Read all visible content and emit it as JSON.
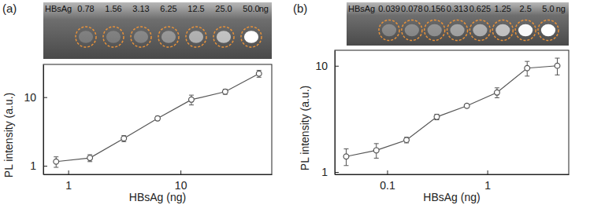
{
  "chart_data": [
    {
      "type": "line",
      "title": "(a)",
      "x_label": "HBsAg (ng)",
      "y_label": "PL intensity (a.u.)",
      "x": [
        0.78,
        1.56,
        3.13,
        6.25,
        12.5,
        25,
        50
      ],
      "values": [
        1.15,
        1.3,
        2.5,
        4.9,
        9.2,
        12,
        22
      ],
      "errors": [
        0.2,
        0.15,
        0.25,
        0.35,
        1.5,
        1.0,
        2.5
      ],
      "xlim": [
        0.6,
        65
      ],
      "ylim": [
        0.75,
        30
      ],
      "xticks": [
        1,
        10
      ],
      "yticks": [
        1,
        10
      ],
      "log": true,
      "marker": "circle",
      "color": "#555555",
      "inset_title": "HBsAg",
      "inset_labels": [
        "0.78",
        "1.56",
        "3.13",
        "6.25",
        "12.5",
        "25.0",
        "50.0"
      ],
      "inset_unit": "ng"
    },
    {
      "type": "line",
      "title": "(b)",
      "x_label": "HBsAg (ng)",
      "y_label": "PL intensity (a.u.)",
      "x": [
        0.039,
        0.078,
        0.156,
        0.313,
        0.625,
        1.25,
        2.5,
        5.0
      ],
      "values": [
        1.4,
        1.6,
        2.0,
        3.3,
        4.2,
        5.6,
        9.5,
        10.0
      ],
      "errors": [
        0.25,
        0.25,
        0.12,
        0.2,
        0.15,
        0.6,
        1.5,
        1.8
      ],
      "xlim": [
        0.03,
        6.5
      ],
      "ylim": [
        0.95,
        14
      ],
      "xticks": [
        0.1,
        1
      ],
      "yticks": [
        1,
        10
      ],
      "log": true,
      "marker": "circle",
      "color": "#555555",
      "inset_title": "HBsAg",
      "inset_labels": [
        "0.039",
        "0.078",
        "0.156",
        "0.313",
        "0.625",
        "1.25",
        "2.5",
        "5.0"
      ],
      "inset_unit": "ng"
    }
  ]
}
